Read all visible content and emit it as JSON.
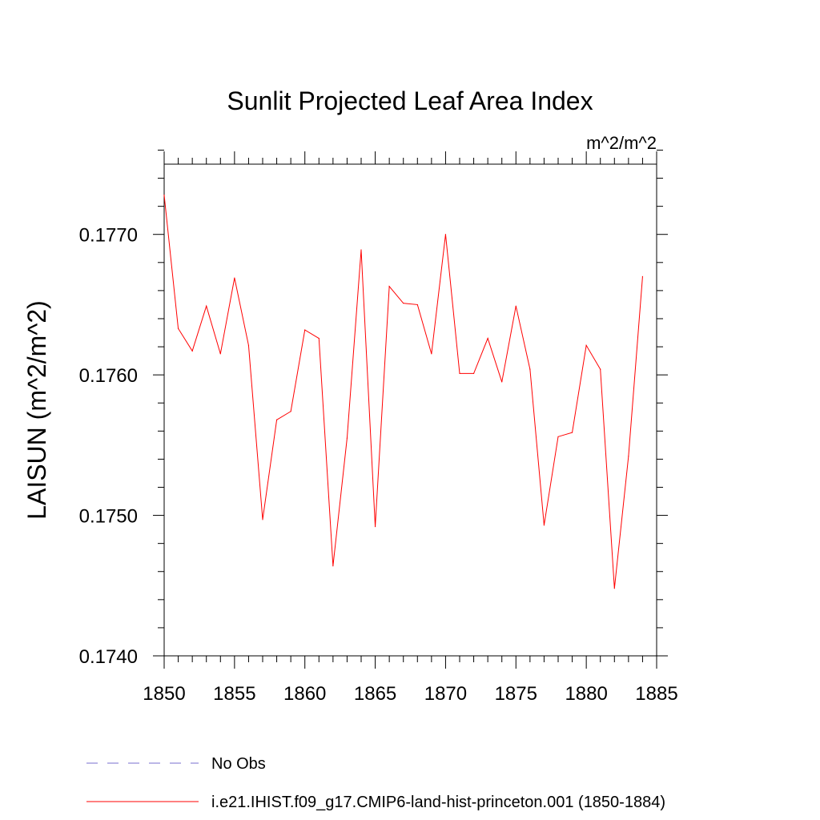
{
  "chart_data": {
    "type": "line",
    "title": "Sunlit Projected Leaf Area Index",
    "units": "m^2/m^2",
    "ylabel": "LAISUN  (m^2/m^2)",
    "xlabel": "",
    "xlim": [
      1850,
      1885
    ],
    "ylim": [
      0.174,
      0.1775
    ],
    "x_ticks": [
      1850,
      1855,
      1860,
      1865,
      1870,
      1875,
      1880,
      1885
    ],
    "x_tick_labels": [
      "1850",
      "1855",
      "1860",
      "1865",
      "1870",
      "1875",
      "1880",
      "1885"
    ],
    "y_ticks": [
      0.174,
      0.175,
      0.176,
      0.177
    ],
    "y_tick_labels": [
      "0.1740",
      "0.1750",
      "0.1760",
      "0.1770"
    ],
    "grid": false,
    "legend_position": "bottom",
    "series": [
      {
        "name": "i.e21.IHIST.f09_g17.CMIP6-land-hist-princeton.001 (1850-1884)",
        "color": "#ff0000",
        "style": "solid",
        "x": [
          1850,
          1851,
          1852,
          1853,
          1854,
          1855,
          1856,
          1857,
          1858,
          1859,
          1860,
          1861,
          1862,
          1863,
          1864,
          1865,
          1866,
          1867,
          1868,
          1869,
          1870,
          1871,
          1872,
          1873,
          1874,
          1875,
          1876,
          1877,
          1878,
          1879,
          1880,
          1881,
          1882,
          1883,
          1884
        ],
        "values": [
          0.17728,
          0.17633,
          0.17617,
          0.17649,
          0.17615,
          0.17669,
          0.17621,
          0.17497,
          0.17568,
          0.17574,
          0.17632,
          0.17626,
          0.17464,
          0.17555,
          0.17689,
          0.17492,
          0.17663,
          0.17651,
          0.1765,
          0.17615,
          0.177,
          0.17601,
          0.17601,
          0.17626,
          0.17595,
          0.17649,
          0.17604,
          0.17493,
          0.17556,
          0.17559,
          0.17621,
          0.17604,
          0.17448,
          0.17542,
          0.1767
        ]
      }
    ],
    "legend": [
      {
        "label": "No Obs",
        "color": "#7a6fcf",
        "style": "dashed"
      },
      {
        "label": "i.e21.IHIST.f09_g17.CMIP6-land-hist-princeton.001 (1850-1884)",
        "color": "#ff0000",
        "style": "solid"
      }
    ]
  }
}
